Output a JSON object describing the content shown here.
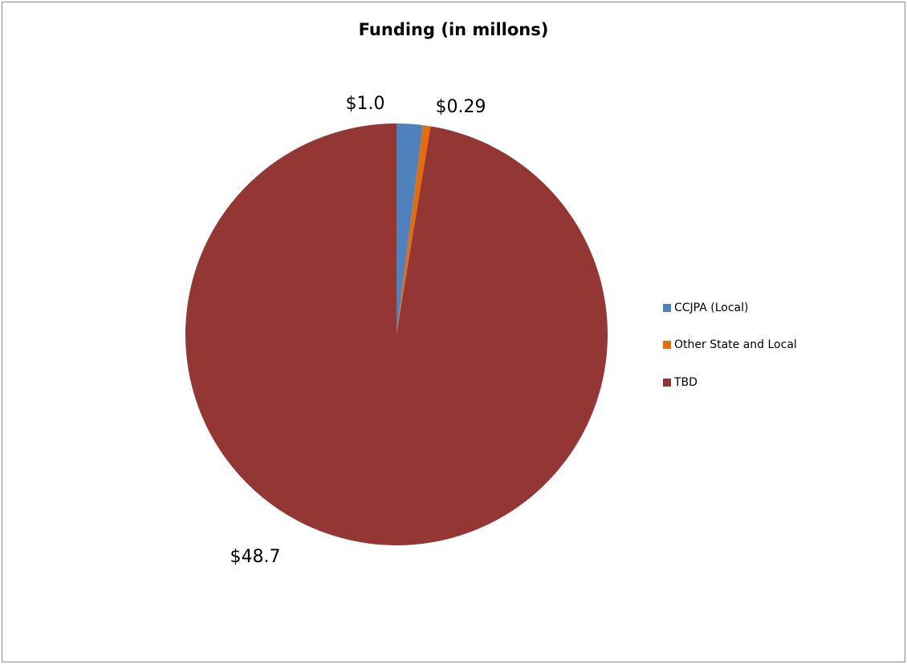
{
  "chart_data": {
    "type": "pie",
    "title": "Funding (in millons)",
    "categories": [
      "CCJPA (Local)",
      "Other State and Local",
      "TBD"
    ],
    "values": [
      1.0,
      0.29,
      48.7
    ],
    "data_labels": [
      "$1.0",
      "$0.29",
      "$48.7"
    ],
    "colors": [
      "#4f81bd",
      "#e46c0a",
      "#943634"
    ],
    "start_angle_deg": 0,
    "direction": "clockwise",
    "legend_position": "right"
  }
}
